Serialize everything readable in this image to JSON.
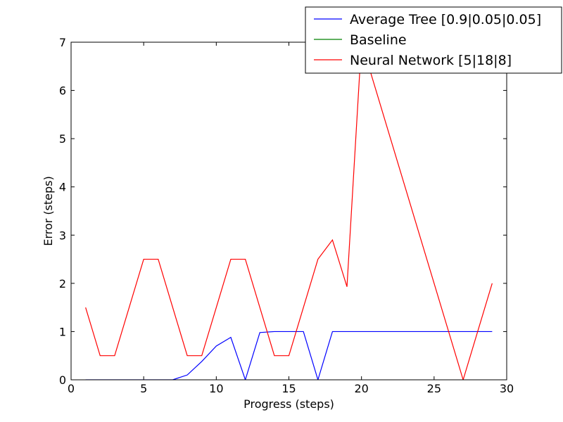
{
  "chart_data": {
    "type": "line",
    "xlabel": "Progress (steps)",
    "ylabel": "Error (steps)",
    "xlim": [
      0,
      30
    ],
    "ylim": [
      0,
      7
    ],
    "xticks": [
      0,
      5,
      10,
      15,
      20,
      25,
      30
    ],
    "yticks": [
      0,
      1,
      2,
      3,
      4,
      5,
      6,
      7
    ],
    "grid": false,
    "legend_position": "top-right",
    "series": [
      {
        "name": "Average Tree [0.9|0.05|0.05]",
        "color": "#0000ff",
        "x": [
          1,
          2,
          3,
          4,
          5,
          6,
          7,
          8,
          9,
          10,
          11,
          12,
          13,
          14,
          15,
          16,
          17,
          18,
          19,
          20,
          21,
          22,
          23,
          24,
          25,
          26,
          27,
          28,
          29
        ],
        "y": [
          0,
          0,
          0,
          0,
          0,
          0,
          0,
          0.1,
          0.38,
          0.7,
          0.88,
          0,
          0.98,
          1.0,
          1.0,
          1.0,
          0,
          1,
          1,
          1,
          1,
          1,
          1,
          1,
          1,
          1,
          1,
          1,
          1
        ]
      },
      {
        "name": "Baseline",
        "color": "#008000",
        "x": [],
        "y": []
      },
      {
        "name": "Neural Network [5|18|8]",
        "color": "#ff0000",
        "x": [
          1,
          2,
          3,
          4,
          5,
          6,
          7,
          8,
          9,
          10,
          11,
          12,
          13,
          14,
          15,
          16,
          17,
          18,
          19,
          20,
          21,
          22,
          23,
          24,
          25,
          26,
          27,
          28,
          29
        ],
        "y": [
          1.5,
          0.5,
          0.5,
          1.5,
          2.5,
          2.5,
          1.5,
          0.5,
          0.5,
          1.5,
          2.5,
          2.5,
          1.5,
          0.5,
          0.5,
          1.5,
          2.5,
          2.9,
          1.93,
          7.0,
          6.0,
          5.0,
          4.0,
          3.0,
          2.0,
          1.0,
          0,
          1.0,
          2.0
        ]
      }
    ]
  }
}
